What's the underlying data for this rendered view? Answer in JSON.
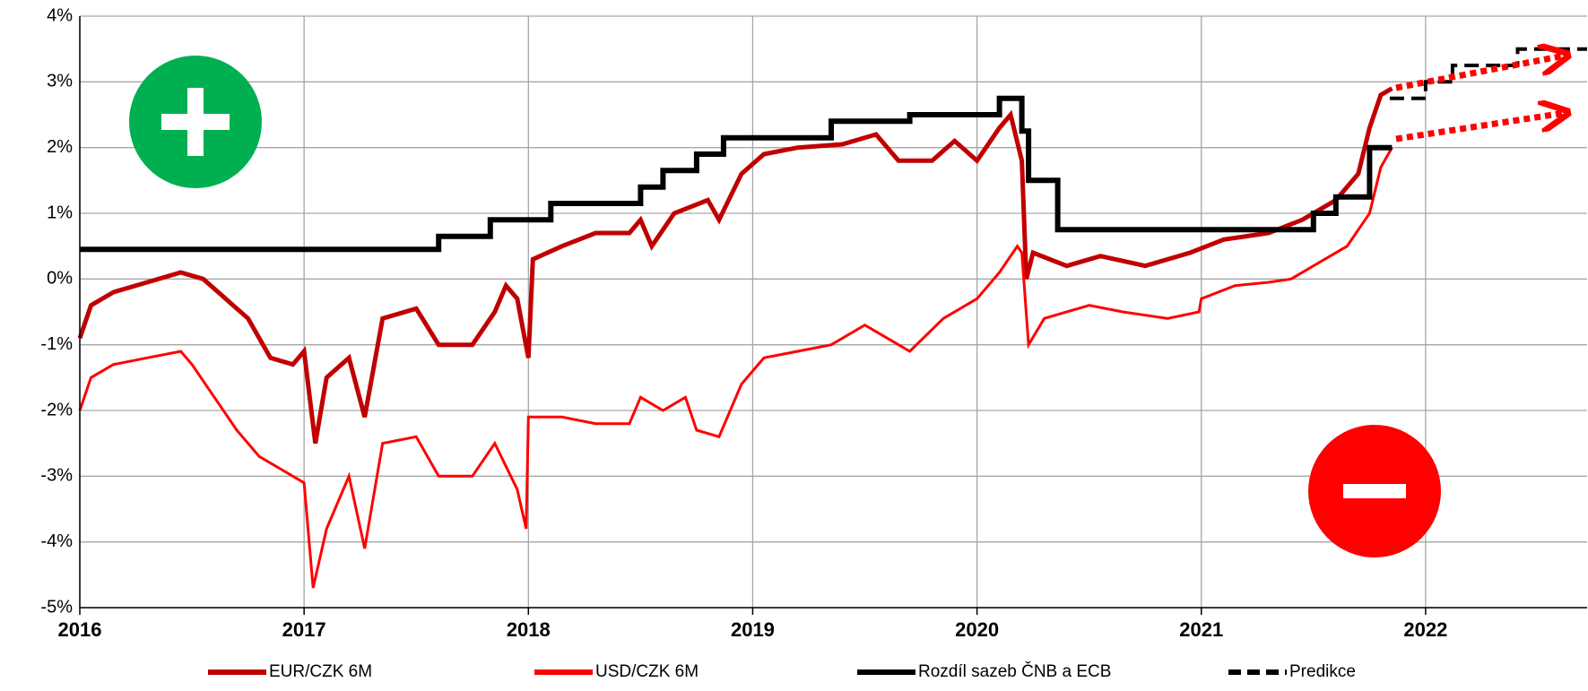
{
  "chart_data": {
    "type": "line",
    "xlim": [
      2016,
      2022.72
    ],
    "xticks": [
      2016,
      2017,
      2018,
      2019,
      2020,
      2021,
      2022
    ],
    "ylim": [
      -5,
      4
    ],
    "yticks": [
      {
        "value": -5,
        "label": "-5%"
      },
      {
        "value": -4,
        "label": "-4%"
      },
      {
        "value": -3,
        "label": "-3%"
      },
      {
        "value": -2,
        "label": "-2%"
      },
      {
        "value": -1,
        "label": "-1%"
      },
      {
        "value": 0,
        "label": "0%"
      },
      {
        "value": 1,
        "label": "1%"
      },
      {
        "value": 2,
        "label": "2%"
      },
      {
        "value": 3,
        "label": "3%"
      },
      {
        "value": 4,
        "label": "4%"
      }
    ],
    "grid": true,
    "legend": "bottom",
    "series": [
      {
        "name": "EUR/CZK 6M",
        "color": "#c00000",
        "dash": "solid",
        "x": [
          2016.0,
          2016.05,
          2016.15,
          2016.3,
          2016.45,
          2016.55,
          2016.65,
          2016.75,
          2016.85,
          2016.95,
          2017.0,
          2017.05,
          2017.1,
          2017.2,
          2017.27,
          2017.35,
          2017.5,
          2017.6,
          2017.75,
          2017.85,
          2017.9,
          2017.95,
          2018.0,
          2018.02,
          2018.15,
          2018.3,
          2018.45,
          2018.5,
          2018.55,
          2018.65,
          2018.8,
          2018.85,
          2018.95,
          2019.05,
          2019.2,
          2019.4,
          2019.55,
          2019.65,
          2019.8,
          2019.9,
          2020.0,
          2020.1,
          2020.15,
          2020.2,
          2020.22,
          2020.25,
          2020.4,
          2020.55,
          2020.75,
          2020.95,
          2021.1,
          2021.3,
          2021.45,
          2021.6,
          2021.7,
          2021.75,
          2021.8,
          2021.85
        ],
        "values": [
          -0.9,
          -0.4,
          -0.2,
          -0.05,
          0.1,
          0.0,
          -0.3,
          -0.6,
          -1.2,
          -1.3,
          -1.1,
          -2.5,
          -1.5,
          -1.2,
          -2.1,
          -0.6,
          -0.45,
          -1.0,
          -1.0,
          -0.5,
          -0.1,
          -0.3,
          -1.2,
          0.3,
          0.5,
          0.7,
          0.7,
          0.9,
          0.5,
          1.0,
          1.2,
          0.9,
          1.6,
          1.9,
          2.0,
          2.05,
          2.2,
          1.8,
          1.8,
          2.1,
          1.8,
          2.3,
          2.5,
          1.8,
          0.0,
          0.4,
          0.2,
          0.35,
          0.2,
          0.4,
          0.6,
          0.7,
          0.9,
          1.2,
          1.6,
          2.3,
          2.8,
          2.9
        ]
      },
      {
        "name": "USD/CZK 6M",
        "color": "#ff0000",
        "dash": "solid",
        "x": [
          2016.0,
          2016.05,
          2016.15,
          2016.3,
          2016.45,
          2016.5,
          2016.6,
          2016.7,
          2016.8,
          2016.9,
          2017.0,
          2017.04,
          2017.1,
          2017.2,
          2017.27,
          2017.35,
          2017.5,
          2017.6,
          2017.75,
          2017.85,
          2017.95,
          2017.99,
          2018.0,
          2018.15,
          2018.3,
          2018.45,
          2018.5,
          2018.6,
          2018.7,
          2018.75,
          2018.85,
          2018.95,
          2019.05,
          2019.2,
          2019.35,
          2019.5,
          2019.6,
          2019.7,
          2019.85,
          2020.0,
          2020.1,
          2020.18,
          2020.2,
          2020.23,
          2020.3,
          2020.5,
          2020.65,
          2020.85,
          2020.99,
          2021.0,
          2021.15,
          2021.3,
          2021.4,
          2021.55,
          2021.65,
          2021.75,
          2021.8,
          2021.85
        ],
        "values": [
          -2.0,
          -1.5,
          -1.3,
          -1.2,
          -1.1,
          -1.3,
          -1.8,
          -2.3,
          -2.7,
          -2.9,
          -3.1,
          -4.7,
          -3.8,
          -3.0,
          -4.1,
          -2.5,
          -2.4,
          -3.0,
          -3.0,
          -2.5,
          -3.2,
          -3.8,
          -2.1,
          -2.1,
          -2.2,
          -2.2,
          -1.8,
          -2.0,
          -1.8,
          -2.3,
          -2.4,
          -1.6,
          -1.2,
          -1.1,
          -1.0,
          -0.7,
          -0.9,
          -1.1,
          -0.6,
          -0.3,
          0.1,
          0.5,
          0.4,
          -1.0,
          -0.6,
          -0.4,
          -0.5,
          -0.6,
          -0.5,
          -0.3,
          -0.1,
          -0.05,
          0.0,
          0.3,
          0.5,
          1.0,
          1.7,
          2.0
        ]
      },
      {
        "name": "Rozdíl sazeb ČNB a ECB",
        "color": "#000000",
        "dash": "solid",
        "x": [
          2016.0,
          2017.6,
          2017.6,
          2017.83,
          2017.83,
          2018.1,
          2018.1,
          2018.5,
          2018.5,
          2018.6,
          2018.6,
          2018.75,
          2018.75,
          2018.87,
          2018.87,
          2019.35,
          2019.35,
          2019.7,
          2019.7,
          2020.1,
          2020.1,
          2020.2,
          2020.2,
          2020.23,
          2020.23,
          2020.36,
          2020.36,
          2021.5,
          2021.5,
          2021.6,
          2021.6,
          2021.75,
          2021.75,
          2021.85
        ],
        "values": [
          0.45,
          0.45,
          0.65,
          0.65,
          0.9,
          0.9,
          1.15,
          1.15,
          1.4,
          1.4,
          1.65,
          1.65,
          1.9,
          1.9,
          2.15,
          2.15,
          2.4,
          2.4,
          2.5,
          2.5,
          2.75,
          2.75,
          2.25,
          2.25,
          1.5,
          1.5,
          0.75,
          0.75,
          1.0,
          1.0,
          1.25,
          1.25,
          2.0,
          2.0
        ]
      },
      {
        "name": "Predikce",
        "color": "#000000",
        "dash": "dashed",
        "x": [
          2021.84,
          2022.0,
          2022.0,
          2022.12,
          2022.12,
          2022.41,
          2022.41,
          2022.72
        ],
        "values": [
          2.75,
          2.75,
          3.0,
          3.0,
          3.25,
          3.25,
          3.5,
          3.5
        ]
      }
    ]
  }
}
